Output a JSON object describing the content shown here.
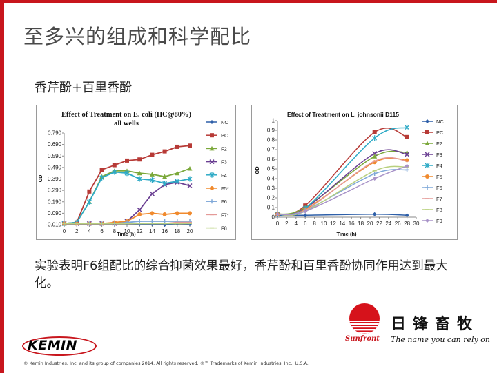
{
  "page": {
    "title": "至多兴的组成和科学配比",
    "subtitle": "香芹酚+百里香酚",
    "conclusion": "实验表明F6组配比的综合抑菌效果最好，香芹酚和百里香酚协同作用达到最大化。",
    "copyright": "© Kemin Industries, Inc. and its group of companies 2014. All rights reserved. ®™ Trademarks of Kemin Industries, Inc., U.S.A."
  },
  "logos": {
    "kemin": "KEMIN",
    "sunfront_brand": "Sunfront",
    "sunfront_cn": "日锋畜牧",
    "sunfront_slogan": "The name you can rely on"
  },
  "colors": {
    "accent": "#c8161d",
    "NC": "#2e5fa8",
    "PC": "#b73a36",
    "F2": "#7ba83a",
    "F3": "#6a3f92",
    "F4": "#2eaac6",
    "F5": "#f08a2e",
    "F6": "#7fa8d8",
    "F7": "#e49a98",
    "F8": "#b8d07e",
    "F9": "#a893c8"
  },
  "chart_data": [
    {
      "type": "line",
      "title": "Effect of Treatment on E. coli (HC@80%)  all wells",
      "xlabel": "Time (h)",
      "ylabel": "OD",
      "x": [
        0,
        2,
        4,
        6,
        8,
        10,
        12,
        14,
        16,
        18,
        20
      ],
      "xticks": [
        0,
        2,
        4,
        6,
        8,
        10,
        12,
        14,
        16,
        18,
        20
      ],
      "yticks": [
        -0.01,
        0.09,
        0.19,
        0.29,
        0.39,
        0.49,
        0.59,
        0.69,
        0.79
      ],
      "ytick_labels": [
        "-0.010",
        "0.090",
        "0.190",
        "0.290",
        "0.390",
        "0.490",
        "0.590",
        "0.690",
        "0.790"
      ],
      "ylim": [
        -0.01,
        0.79
      ],
      "xlim": [
        0,
        20
      ],
      "grid": false,
      "legend": "right",
      "series": [
        {
          "name": "NC",
          "marker": "diamond",
          "values": [
            0.0,
            0.0,
            0.0,
            0.0,
            0.0,
            0.0,
            -0.005,
            -0.005,
            -0.01,
            0.0,
            -0.005
          ]
        },
        {
          "name": "PC",
          "marker": "square",
          "values": [
            0.0,
            0.01,
            0.28,
            0.47,
            0.51,
            0.55,
            0.56,
            0.6,
            0.63,
            0.67,
            0.68
          ]
        },
        {
          "name": "F2",
          "marker": "triangle",
          "values": [
            0.0,
            0.01,
            0.19,
            0.41,
            0.46,
            0.46,
            0.44,
            0.43,
            0.41,
            0.44,
            0.48
          ]
        },
        {
          "name": "F3",
          "marker": "x",
          "values": [
            0.0,
            0.0,
            0.0,
            0.0,
            0.0,
            0.02,
            0.12,
            0.26,
            0.34,
            0.36,
            0.33
          ]
        },
        {
          "name": "F4",
          "marker": "star",
          "values": [
            0.0,
            0.01,
            0.19,
            0.4,
            0.45,
            0.44,
            0.39,
            0.38,
            0.35,
            0.37,
            0.39
          ]
        },
        {
          "name": "F5*",
          "marker": "circle",
          "values": [
            0.0,
            0.0,
            0.0,
            0.0,
            0.01,
            0.02,
            0.08,
            0.09,
            0.08,
            0.09,
            0.09
          ]
        },
        {
          "name": "F6",
          "marker": "plus",
          "values": [
            0.0,
            0.0,
            0.0,
            0.0,
            0.0,
            0.01,
            0.02,
            0.02,
            0.02,
            0.02,
            0.02
          ]
        },
        {
          "name": "F7*",
          "marker": "dash",
          "values": [
            0.0,
            0.0,
            0.0,
            0.0,
            0.0,
            0.0,
            0.0,
            0.0,
            0.0,
            0.01,
            0.01
          ]
        },
        {
          "name": "F8",
          "marker": "dash",
          "values": [
            0.0,
            0.0,
            0.0,
            0.0,
            0.0,
            0.0,
            0.0,
            0.0,
            0.0,
            0.0,
            0.0
          ]
        }
      ]
    },
    {
      "type": "line",
      "title": "Effect of Treatment on L. johnsonii D115",
      "xlabel": "Time (h)",
      "ylabel": "OD",
      "x": [
        0,
        6,
        21,
        28
      ],
      "xticks": [
        0,
        2,
        4,
        6,
        8,
        10,
        12,
        14,
        16,
        18,
        20,
        22,
        24,
        26,
        28,
        30
      ],
      "yticks": [
        0,
        0.1,
        0.2,
        0.3,
        0.4,
        0.5,
        0.6,
        0.7,
        0.8,
        0.9,
        1
      ],
      "ytick_labels": [
        "0",
        "0.1",
        "0.2",
        "0.3",
        "0.4",
        "0.5",
        "0.6",
        "0.7",
        "0.8",
        "0.9",
        "1"
      ],
      "ylim": [
        0,
        1
      ],
      "xlim": [
        0,
        30
      ],
      "grid": false,
      "legend": "right",
      "series": [
        {
          "name": "NC",
          "marker": "diamond",
          "values": [
            0.02,
            0.02,
            0.03,
            0.02
          ]
        },
        {
          "name": "PC",
          "marker": "square",
          "values": [
            0.03,
            0.12,
            0.88,
            0.83
          ]
        },
        {
          "name": "F2",
          "marker": "triangle",
          "values": [
            0.03,
            0.1,
            0.63,
            0.67
          ]
        },
        {
          "name": "F3",
          "marker": "x",
          "values": [
            0.03,
            0.09,
            0.66,
            0.65
          ]
        },
        {
          "name": "F4",
          "marker": "star",
          "values": [
            0.03,
            0.09,
            0.82,
            0.93
          ]
        },
        {
          "name": "F5",
          "marker": "circle",
          "values": [
            0.03,
            0.08,
            0.57,
            0.59
          ]
        },
        {
          "name": "F6",
          "marker": "plus",
          "values": [
            0.03,
            0.07,
            0.45,
            0.49
          ]
        },
        {
          "name": "F7",
          "marker": "dash",
          "values": [
            0.03,
            0.07,
            0.58,
            0.58
          ]
        },
        {
          "name": "F8",
          "marker": "dash",
          "values": [
            0.03,
            0.06,
            0.48,
            0.52
          ]
        },
        {
          "name": "F9",
          "marker": "diamond",
          "values": [
            0.03,
            0.06,
            0.4,
            0.53
          ]
        }
      ]
    }
  ]
}
